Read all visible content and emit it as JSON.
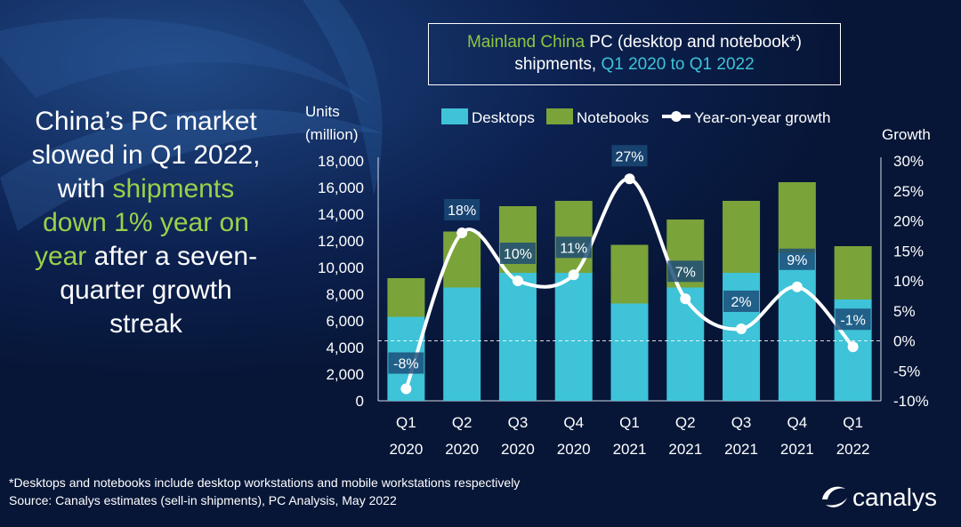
{
  "headline": {
    "line1": "China’s PC market",
    "line2": "slowed in Q1 2022,",
    "line3a": "with ",
    "line3b": "shipments",
    "line4": "down 1% year on",
    "line5a": "year",
    "line5b": " after a seven-",
    "line6": "quarter growth",
    "line7": "streak"
  },
  "title_box": {
    "part1": "Mainland China",
    "part2": " PC (desktop and notebook*)",
    "part3": "shipments, ",
    "part4": "Q1 2020 to Q1 2022"
  },
  "footnote": {
    "line1": "*Desktops and notebooks include desktop workstations and mobile workstations respectively",
    "line2": "Source: Canalys estimates (sell-in shipments), PC Analysis, May 2022"
  },
  "logo": {
    "text": "canalys"
  },
  "colors": {
    "desktops": "#3ec3d8",
    "notebooks": "#7aa33a",
    "growth_line": "#ffffff",
    "highlight_green": "#9bd04a"
  },
  "chart_data": {
    "type": "bar",
    "stacked": true,
    "categories": [
      [
        "Q1",
        "2020"
      ],
      [
        "Q2",
        "2020"
      ],
      [
        "Q3",
        "2020"
      ],
      [
        "Q4",
        "2020"
      ],
      [
        "Q1",
        "2021"
      ],
      [
        "Q2",
        "2021"
      ],
      [
        "Q3",
        "2021"
      ],
      [
        "Q4",
        "2021"
      ],
      [
        "Q1",
        "2022"
      ]
    ],
    "series": [
      {
        "name": "Desktops",
        "values": [
          6300,
          8500,
          9600,
          9600,
          7300,
          8500,
          9600,
          11100,
          7600
        ]
      },
      {
        "name": "Notebooks",
        "values": [
          2900,
          4200,
          5000,
          5400,
          4400,
          5100,
          5400,
          5300,
          4000
        ]
      }
    ],
    "line_series": {
      "name": "Year-on-year growth",
      "values": [
        -8,
        18,
        10,
        11,
        27,
        7,
        2,
        9,
        -1
      ],
      "labels": [
        "-8%",
        "18%",
        "10%",
        "11%",
        "27%",
        "7%",
        "2%",
        "9%",
        "-1%"
      ]
    },
    "ylabel_left": [
      "Units",
      "(million)"
    ],
    "ylabel_right": "Growth",
    "ylim_left": [
      0,
      18000
    ],
    "yticks_left": [
      "18,000",
      "16,000",
      "14,000",
      "12,000",
      "10,000",
      "8,000",
      "6,000",
      "4,000",
      "2,000",
      "0"
    ],
    "ylim_right": [
      -10,
      30
    ],
    "yticks_right": [
      "30%",
      "25%",
      "20%",
      "15%",
      "10%",
      "5%",
      "0%",
      "-5%",
      "-10%"
    ],
    "legend_position": "top"
  }
}
